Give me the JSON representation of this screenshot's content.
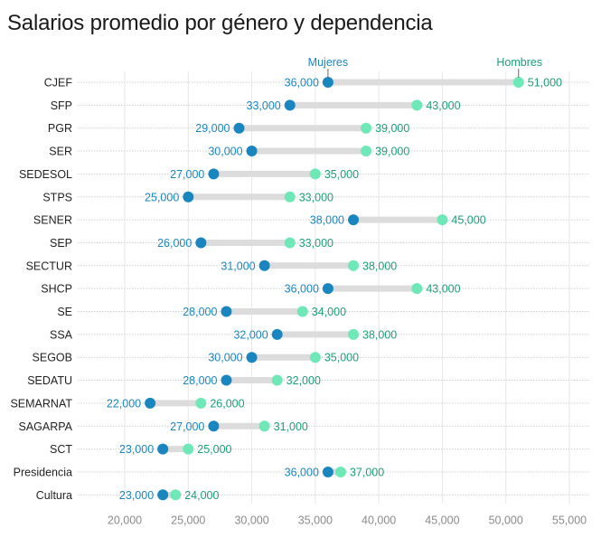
{
  "chart_data": {
    "type": "dumbbell",
    "title": "Salarios promedio por género y dependencia",
    "xlabel": "",
    "ylabel": "",
    "xlim": [
      20000,
      55000
    ],
    "x_ticks": [
      20000,
      25000,
      30000,
      35000,
      40000,
      45000,
      50000,
      55000
    ],
    "x_tick_labels": [
      "20,000",
      "25,000",
      "30,000",
      "35,000",
      "40,000",
      "45,000",
      "50,000",
      "55,000"
    ],
    "grid": true,
    "legend_placement": "top, annotated on first row",
    "categories": [
      "CJEF",
      "SFP",
      "PGR",
      "SER",
      "SEDESOL",
      "STPS",
      "SENER",
      "SEP",
      "SECTUR",
      "SHCP",
      "SE",
      "SSA",
      "SEGOB",
      "SEDATU",
      "SEMARNAT",
      "SAGARPA",
      "SCT",
      "Presidencia",
      "Cultura"
    ],
    "series": [
      {
        "name": "Mujeres",
        "color": "#1a86c0",
        "values": [
          36000,
          33000,
          29000,
          30000,
          27000,
          25000,
          38000,
          26000,
          31000,
          36000,
          28000,
          32000,
          30000,
          28000,
          22000,
          27000,
          23000,
          36000,
          23000
        ],
        "labels": [
          "36,000",
          "33,000",
          "29,000",
          "30,000",
          "27,000",
          "25,000",
          "38,000",
          "26,000",
          "31,000",
          "36,000",
          "28,000",
          "32,000",
          "30,000",
          "28,000",
          "22,000",
          "27,000",
          "23,000",
          "36,000",
          "23,000"
        ]
      },
      {
        "name": "Hombres",
        "color": "#6ee8b7",
        "label_color": "#1e9e78",
        "values": [
          51000,
          43000,
          39000,
          39000,
          35000,
          33000,
          45000,
          33000,
          38000,
          43000,
          34000,
          38000,
          35000,
          32000,
          26000,
          31000,
          25000,
          37000,
          24000
        ],
        "labels": [
          "51,000",
          "43,000",
          "39,000",
          "39,000",
          "35,000",
          "33,000",
          "45,000",
          "33,000",
          "38,000",
          "43,000",
          "34,000",
          "38,000",
          "35,000",
          "32,000",
          "26,000",
          "31,000",
          "25,000",
          "37,000",
          "24,000"
        ]
      }
    ],
    "connector_color": "#dcdcdc"
  }
}
